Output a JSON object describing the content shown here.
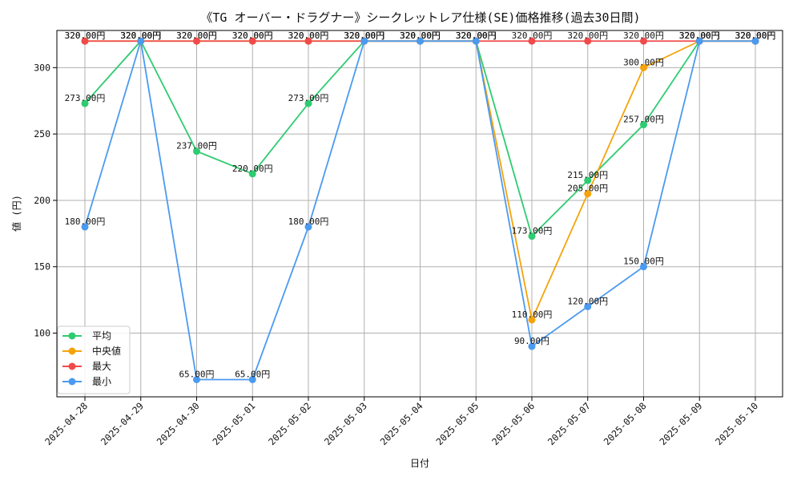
{
  "chart_data": {
    "type": "line",
    "title": "《TG オーバー・ドラグナー》シークレットレア仕様(SE)価格推移(過去30日間)",
    "xlabel": "日付",
    "ylabel": "値 (円)",
    "ylim": [
      52,
      328
    ],
    "yticks": [
      100,
      150,
      200,
      250,
      300
    ],
    "grid": true,
    "legend_position": "lower-left",
    "label_suffix": "円",
    "categories": [
      "2025-04-28",
      "2025-04-29",
      "2025-04-30",
      "2025-05-01",
      "2025-05-02",
      "2025-05-03",
      "2025-05-04",
      "2025-05-05",
      "2025-05-06",
      "2025-05-07",
      "2025-05-08",
      "2025-05-09",
      "2025-05-10"
    ],
    "series": [
      {
        "name": "平均",
        "color": "#2ecc71",
        "values": [
          273,
          320,
          237,
          220,
          273,
          320,
          320,
          320,
          173,
          215,
          257,
          320,
          320
        ]
      },
      {
        "name": "中央値",
        "color": "#f5a30a",
        "values": [
          320,
          320,
          320,
          320,
          320,
          320,
          320,
          320,
          110,
          205,
          300,
          320,
          320
        ]
      },
      {
        "name": "最大",
        "color": "#f04a4a",
        "values": [
          320,
          320,
          320,
          320,
          320,
          320,
          320,
          320,
          320,
          320,
          320,
          320,
          320
        ]
      },
      {
        "name": "最小",
        "color": "#4a9af0",
        "values": [
          180,
          320,
          65,
          65,
          180,
          320,
          320,
          320,
          90,
          120,
          150,
          320,
          320
        ]
      }
    ]
  }
}
